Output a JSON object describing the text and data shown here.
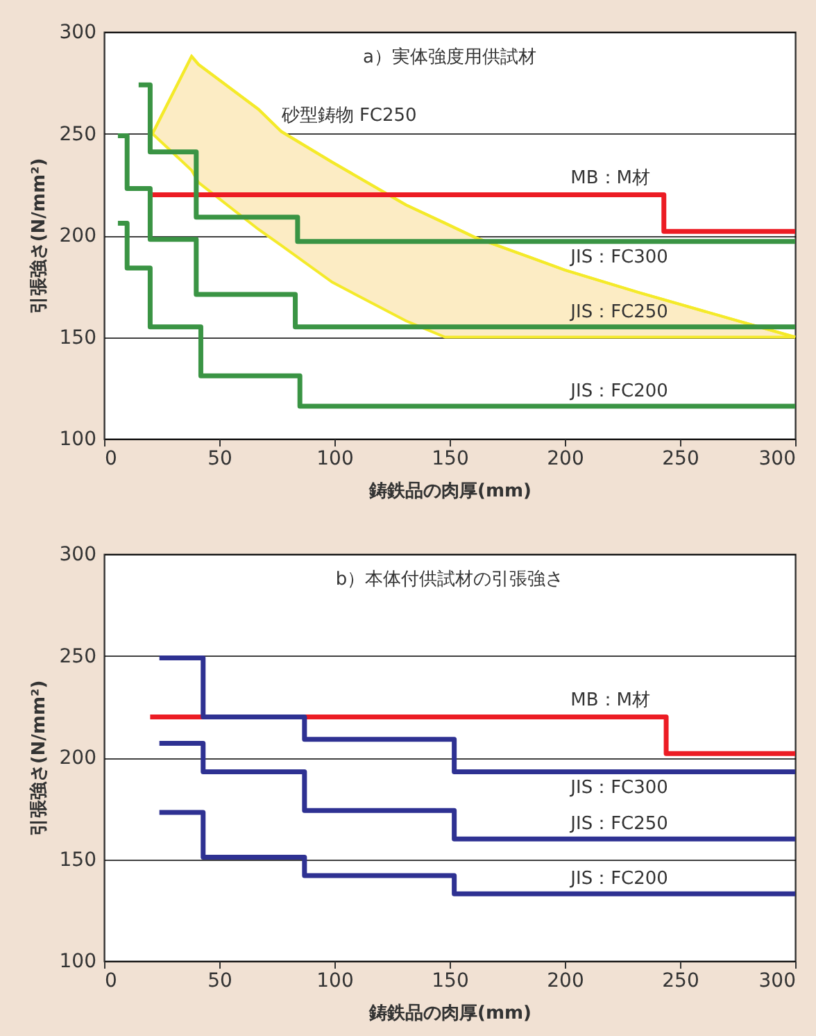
{
  "chart_data": [
    {
      "type": "step",
      "title": "a）実体強度用供試材",
      "xlabel": "鋳鉄品の肉厚(mm)",
      "ylabel": "引張強さ(N/mm²)",
      "xlim": [
        0,
        300
      ],
      "xticks": [
        0,
        50,
        100,
        150,
        200,
        250,
        300
      ],
      "ylim": [
        100,
        300
      ],
      "yticks": [
        100,
        150,
        200,
        250,
        300
      ],
      "grid": "y",
      "marker": "none",
      "line_style": "solid",
      "series": [
        {
          "name": "砂型鋳物 FC250",
          "type": "line",
          "color": "#f4ea2a",
          "x": [
            21,
            38,
            41,
            67,
            77,
            99,
            131,
            148,
            161,
            200,
            232,
            272,
            300
          ],
          "values": [
            250,
            288,
            284,
            262,
            251,
            236,
            215,
            206,
            199,
            183,
            172,
            159,
            150
          ],
          "upper": [
            250,
            288,
            284,
            262,
            251,
            236,
            215,
            206,
            199,
            183,
            172,
            159,
            150
          ],
          "lower": [
            250,
            232,
            226,
            203,
            195,
            177,
            158,
            150,
            150,
            150,
            150,
            150,
            150
          ]
        },
        {
          "name": "MB：M材",
          "color": "#ec1c24",
          "x": [
            21,
            243,
            300
          ],
          "values": [
            220,
            202,
            202
          ]
        },
        {
          "name": "JIS：FC300",
          "color": "#3a9444",
          "x": [
            15,
            20,
            40,
            84,
            300
          ],
          "values": [
            274,
            241,
            209,
            197,
            197
          ]
        },
        {
          "name": "JIS：FC250",
          "color": "#3a9444",
          "x": [
            6,
            10,
            20,
            40,
            83,
            300
          ],
          "values": [
            249,
            223,
            198,
            171,
            155,
            155
          ]
        },
        {
          "name": "JIS：FC200",
          "color": "#3a9444",
          "x": [
            6,
            10,
            20,
            42,
            85,
            300
          ],
          "values": [
            206,
            184,
            155,
            131,
            116,
            116
          ]
        }
      ]
    },
    {
      "type": "step",
      "title": "b）本体付供試材の引張強さ",
      "xlabel": "鋳鉄品の肉厚(mm)",
      "ylabel": "引張強さ(N/mm²)",
      "xlim": [
        0,
        300
      ],
      "xticks": [
        0,
        50,
        100,
        150,
        200,
        250,
        300
      ],
      "ylim": [
        100,
        300
      ],
      "yticks": [
        100,
        150,
        200,
        250,
        300
      ],
      "grid": "y",
      "marker": "none",
      "line_style": "solid",
      "series": [
        {
          "name": "MB：M材",
          "color": "#ec1c24",
          "x": [
            20,
            244,
            300
          ],
          "values": [
            220,
            202,
            202
          ]
        },
        {
          "name": "JIS：FC300",
          "color": "#2e3192",
          "x": [
            24,
            43,
            87,
            152,
            300
          ],
          "values": [
            249,
            220,
            209,
            193,
            193
          ]
        },
        {
          "name": "JIS：FC250",
          "color": "#2e3192",
          "x": [
            24,
            43,
            87,
            152,
            300
          ],
          "values": [
            207,
            193,
            174,
            160,
            160
          ]
        },
        {
          "name": "JIS：FC200",
          "color": "#2e3192",
          "x": [
            24,
            43,
            87,
            152,
            300
          ],
          "values": [
            173,
            151,
            142,
            133,
            133
          ]
        }
      ]
    }
  ]
}
